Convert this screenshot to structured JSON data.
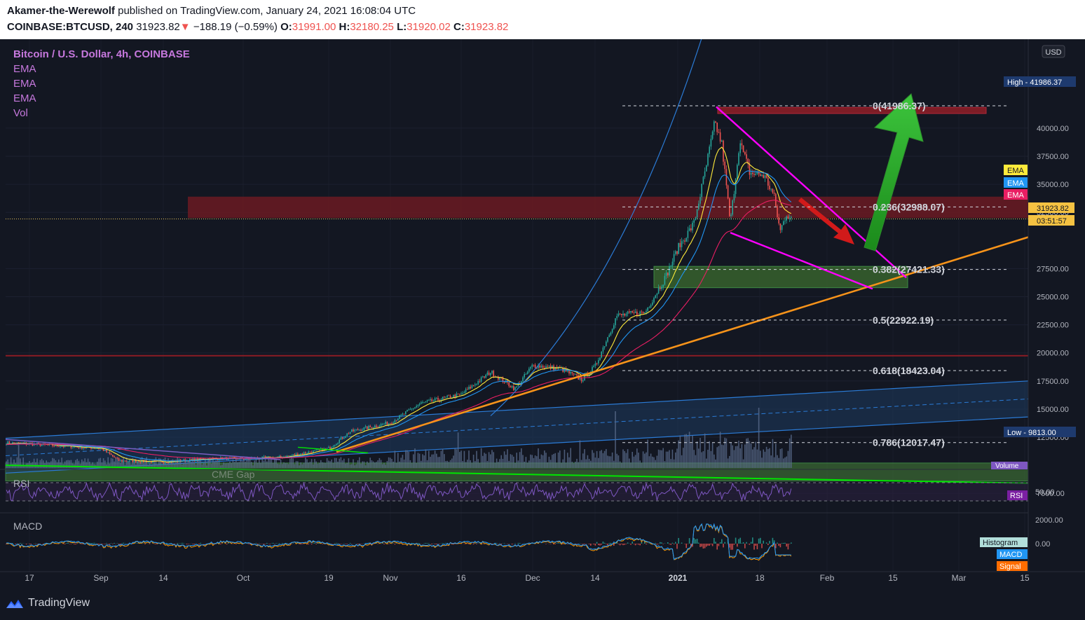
{
  "header": {
    "author": "Akamer-the-Werewolf",
    "published": "published on TradingView.com, January 24, 2021 16:08:04 UTC",
    "symbol": "COINBASE:BTCUSD, 240",
    "last": "31923.82",
    "arrow": "▼",
    "change": "−188.19 (−0.59%)",
    "o_label": "O:",
    "o": "31991.00",
    "h_label": "H:",
    "h": "32180.25",
    "l_label": "L:",
    "l": "31920.02",
    "c_label": "C:",
    "c": "31923.82"
  },
  "legend": {
    "title": "Bitcoin / U.S. Dollar, 4h, COINBASE",
    "items": [
      "EMA",
      "EMA",
      "EMA",
      "Vol"
    ]
  },
  "panes": {
    "rsi": "RSI",
    "macd": "MACD",
    "rsi_tag": "RSI",
    "volume_tag": "Volume"
  },
  "footer": {
    "brand": "TradingView"
  },
  "chart_data": {
    "type": "candlestick",
    "currency": "USD",
    "price_axis": [
      "40000.00",
      "37500.00",
      "35000.00",
      "32500.00",
      "27500.00",
      "25000.00",
      "22500.00",
      "20000.00",
      "17500.00",
      "15000.00",
      "12500.00",
      "7500.00"
    ],
    "time_axis": [
      "17",
      "Sep",
      "14",
      "Oct",
      "19",
      "Nov",
      "16",
      "Dec",
      "14",
      "2021",
      "18",
      "Feb",
      "15",
      "Mar",
      "15"
    ],
    "high_label": "High - 41986.37",
    "low_label": "Low - 9813.00",
    "last_price": "31923.82",
    "countdown": "03:51:57",
    "ema_tags": [
      "EMA",
      "EMA",
      "EMA"
    ],
    "ema_colors": [
      "#ffeb3b",
      "#2196f3",
      "#e91e63"
    ],
    "fib_levels": [
      {
        "label": "0(41986.37)",
        "price": 41986.37
      },
      {
        "label": "0.236(32988.07)",
        "price": 32988.07
      },
      {
        "label": "0.382(27421.33)",
        "price": 27421.33
      },
      {
        "label": "0.5(22922.19)",
        "price": 22922.19
      },
      {
        "label": "0.618(18423.04)",
        "price": 18423.04
      },
      {
        "label": "0.786(12017.47)",
        "price": 12017.47
      }
    ],
    "annotations": [
      "CME Gap"
    ],
    "rsi_axis": [
      "50.00"
    ],
    "macd_axis": [
      "2000.00",
      "0.00"
    ],
    "macd_tags": [
      "Histogram",
      "MACD",
      "Signal"
    ],
    "ylim": [
      7000,
      43000
    ]
  }
}
